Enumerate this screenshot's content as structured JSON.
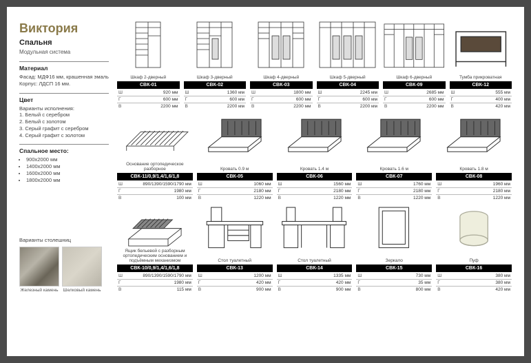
{
  "title": "Виктория",
  "subtitle": "Спальня",
  "subtext": "Модульная система",
  "material": {
    "head": "Материал",
    "body": "Фасад: МДФ16 мм, крашенная эмаль\nКорпус: ЛДСП 16 мм."
  },
  "color": {
    "head": "Цвет",
    "sub": "Варианты исполнения:",
    "items": [
      "1. Белый с серебром",
      "2. Белый с золотом",
      "3. Серый графит с серебром",
      "4. Серый графит с золотом"
    ]
  },
  "bed": {
    "head": "Спальное место:",
    "items": [
      "900x2000 мм",
      "1400x2000 мм",
      "1600x2000 мм",
      "1800x2000 мм"
    ]
  },
  "surfaces": {
    "label": "Варианты столешниц",
    "items": [
      {
        "name": "Железный камень"
      },
      {
        "name": "Шелковый камень"
      }
    ]
  },
  "rows": [
    [
      {
        "label": "Шкаф 2-дверный",
        "code": "СВК-01",
        "w": "920 мм",
        "d": "600 мм",
        "h": "2200 мм",
        "svg": "wardrobe2"
      },
      {
        "label": "Шкаф 3-дверный",
        "code": "СВК-02",
        "w": "1360 мм",
        "d": "600 мм",
        "h": "2200 мм",
        "svg": "wardrobe3"
      },
      {
        "label": "Шкаф 4-дверный",
        "code": "СВК-03",
        "w": "1800 мм",
        "d": "600 мм",
        "h": "2200 мм",
        "svg": "wardrobe4"
      },
      {
        "label": "Шкаф 5-дверный",
        "code": "СВК-04",
        "w": "2245 мм",
        "d": "600 мм",
        "h": "2200 мм",
        "svg": "wardrobe5"
      },
      {
        "label": "Шкаф 6-дверный",
        "code": "СВК-09",
        "w": "2685 мм",
        "d": "600 мм",
        "h": "2200 мм",
        "svg": "wardrobe6"
      },
      {
        "label": "Тумба прикроватная",
        "code": "СВК-12",
        "w": "555 мм",
        "d": "400 мм",
        "h": "420 мм",
        "svg": "nightstand"
      }
    ],
    [
      {
        "label": "Основание ортопедическое разборное",
        "code": "СВК-11/0,9/1,4/1,6/1,8",
        "w": "890/1390/1590/1790 мм",
        "d": "1980 мм",
        "h": "100 мм",
        "svg": "base"
      },
      {
        "label": "Кровать 0.9 м",
        "code": "СВК-05",
        "w": "1060 мм",
        "d": "2180 мм",
        "h": "1220 мм",
        "svg": "bed"
      },
      {
        "label": "Кровать 1.4 м",
        "code": "СВК-06",
        "w": "1560 мм",
        "d": "2180 мм",
        "h": "1220 мм",
        "svg": "bed"
      },
      {
        "label": "Кровать 1.6 м",
        "code": "СВК-07",
        "w": "1760 мм",
        "d": "2180 мм",
        "h": "1220 мм",
        "svg": "bed"
      },
      {
        "label": "Кровать 1.8 м",
        "code": "СВК-08",
        "w": "1960 мм",
        "d": "2180 мм",
        "h": "1220 мм",
        "svg": "bed"
      }
    ],
    [
      {
        "label": "Ящик бельевой с разборным ортопедическим основанием и подъёмным механизмом",
        "code": "СВК-10/0,9/1,4/1,6/1,8",
        "w": "890/1390/1590/1790 мм",
        "d": "1980 мм",
        "h": "115 мм",
        "svg": "drawer"
      },
      {
        "label": "Стол туалетный",
        "code": "СВК-13",
        "w": "1200 мм",
        "d": "420 мм",
        "h": "900 мм",
        "svg": "desk1"
      },
      {
        "label": "Стол туалетный",
        "code": "СВК-14",
        "w": "1335 мм",
        "d": "420 мм",
        "h": "900 мм",
        "svg": "desk2"
      },
      {
        "label": "Зеркало",
        "code": "СВК-15",
        "w": "730 мм",
        "d": "35 мм",
        "h": "800 мм",
        "svg": "mirror"
      },
      {
        "label": "Пуф",
        "code": "СВК-16",
        "w": "380 мм",
        "d": "380 мм",
        "h": "420 мм",
        "svg": "pouf"
      }
    ]
  ],
  "dimKeys": {
    "w": "Ш",
    "d": "Г",
    "h": "В"
  }
}
